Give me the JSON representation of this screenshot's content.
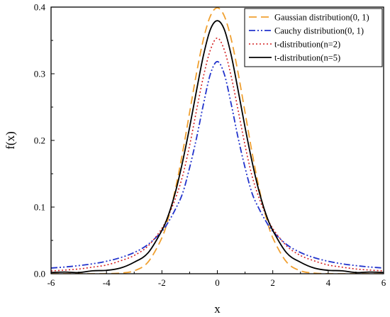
{
  "chart_data": {
    "type": "line",
    "title": "",
    "xlabel": "x",
    "ylabel": "f(x)",
    "xlim": [
      -6,
      6
    ],
    "ylim": [
      0,
      0.4
    ],
    "xticks": [
      -6,
      -4,
      -2,
      0,
      2,
      4,
      6
    ],
    "xtick_labels": [
      "-6",
      "-4",
      "-2",
      "0",
      "2",
      "4",
      "6"
    ],
    "yticks": [
      0,
      0.1,
      0.2,
      0.3,
      0.4
    ],
    "ytick_labels": [
      "0.0",
      "0.1",
      "0.2",
      "0.3",
      "0.4"
    ],
    "grid": false,
    "legend_position": "top-right",
    "x": [
      -6,
      -5.5,
      -5,
      -4.5,
      -4,
      -3.5,
      -3,
      -2.5,
      -2,
      -1.75,
      -1.5,
      -1.25,
      -1,
      -0.75,
      -0.5,
      -0.25,
      0,
      0.25,
      0.5,
      0.75,
      1,
      1.25,
      1.5,
      1.75,
      2,
      2.5,
      3,
      3.5,
      4,
      4.5,
      5,
      5.5,
      6
    ],
    "series": [
      {
        "name": "Gaussian distribution(0, 1)",
        "color": "#F0A030",
        "dash": "11,6",
        "width": 1.8,
        "values": [
          0.0,
          0.0,
          0.0,
          0.0,
          0.0001,
          0.0009,
          0.0044,
          0.0175,
          0.054,
          0.0863,
          0.1295,
          0.1826,
          0.242,
          0.3011,
          0.3521,
          0.3867,
          0.3989,
          0.3867,
          0.3521,
          0.3011,
          0.242,
          0.1826,
          0.1295,
          0.0863,
          0.054,
          0.0175,
          0.0044,
          0.0009,
          0.0001,
          0.0,
          0.0,
          0.0,
          0.0
        ]
      },
      {
        "name": "Cauchy distribution(0, 1)",
        "color": "#2233CC",
        "dash": "9,3,2,3,2,3",
        "width": 1.8,
        "values": [
          0.0086,
          0.0101,
          0.0122,
          0.0149,
          0.0187,
          0.0241,
          0.0318,
          0.0439,
          0.0637,
          0.0789,
          0.0979,
          0.1211,
          0.1592,
          0.2037,
          0.2546,
          0.2996,
          0.3183,
          0.2996,
          0.2546,
          0.2037,
          0.1592,
          0.1211,
          0.0979,
          0.0789,
          0.0637,
          0.0439,
          0.0318,
          0.0241,
          0.0187,
          0.0149,
          0.0122,
          0.0101,
          0.0086
        ]
      },
      {
        "name": "t-distribution(n=2)",
        "color": "#D42020",
        "dash": "2,3",
        "width": 1.6,
        "values": [
          0.0042,
          0.0055,
          0.0071,
          0.0099,
          0.0131,
          0.0193,
          0.0274,
          0.0417,
          0.068,
          0.0887,
          0.1142,
          0.1471,
          0.1925,
          0.2453,
          0.2962,
          0.3358,
          0.3536,
          0.3358,
          0.2962,
          0.2453,
          0.1925,
          0.1471,
          0.1142,
          0.0887,
          0.068,
          0.0417,
          0.0274,
          0.0193,
          0.0131,
          0.0099,
          0.0071,
          0.0055,
          0.0042
        ]
      },
      {
        "name": "t-distribution(n=5)",
        "color": "#000000",
        "dash": "",
        "width": 1.8,
        "values": [
          0.0018,
          0.0025,
          0.0018,
          0.0044,
          0.0051,
          0.0085,
          0.0173,
          0.0313,
          0.0651,
          0.0898,
          0.1245,
          0.1687,
          0.2197,
          0.2751,
          0.3279,
          0.3666,
          0.3796,
          0.3666,
          0.3279,
          0.2751,
          0.2197,
          0.1687,
          0.1245,
          0.0898,
          0.0651,
          0.0313,
          0.0173,
          0.0085,
          0.0051,
          0.0044,
          0.0018,
          0.0025,
          0.0018
        ]
      }
    ]
  }
}
